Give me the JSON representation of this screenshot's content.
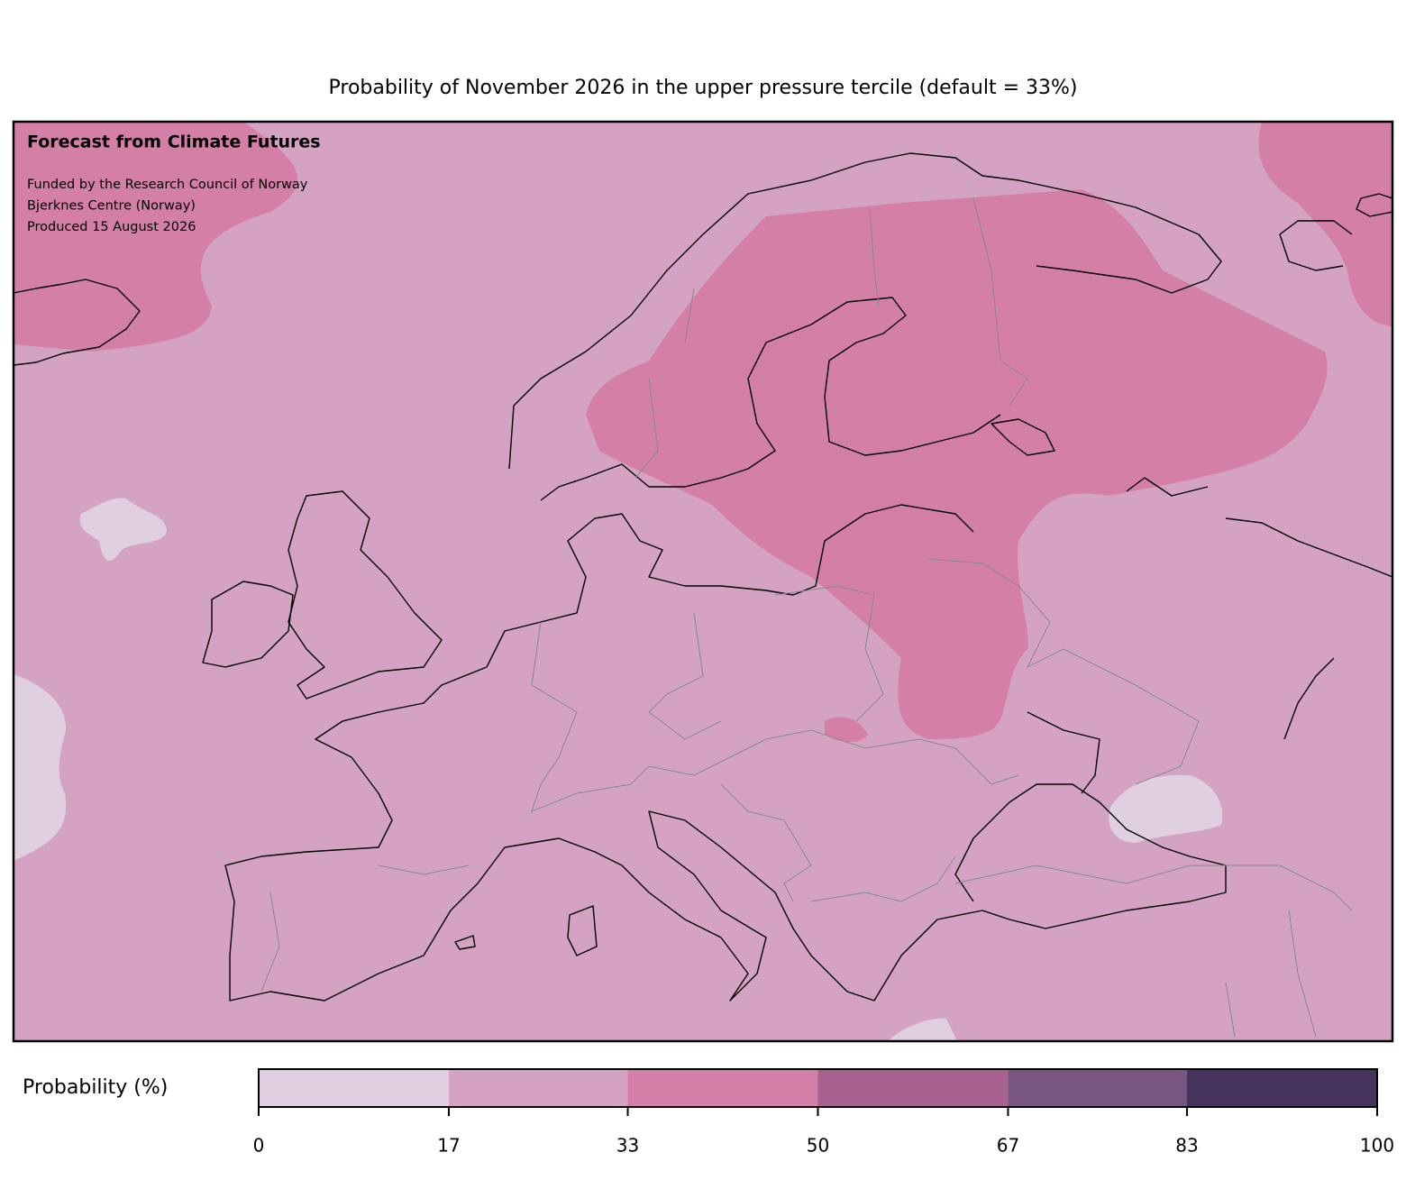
{
  "title": "Probability of November 2026 in the upper pressure tercile (default = 33%)",
  "annotation": {
    "heading": "Forecast from Climate Futures",
    "lines": [
      "Funded by the Research Council of Norway",
      "Bjerknes Centre (Norway)",
      "Produced 15 August 2026"
    ]
  },
  "colorbar": {
    "label": "Probability (%)",
    "lim": [
      0,
      100
    ],
    "ticks": [
      0,
      17,
      33,
      50,
      67,
      83,
      100
    ],
    "colors": [
      "#dfcfe0",
      "#d4a3c4",
      "#d47fa8",
      "#a76290",
      "#77577f",
      "#45325d"
    ]
  }
}
